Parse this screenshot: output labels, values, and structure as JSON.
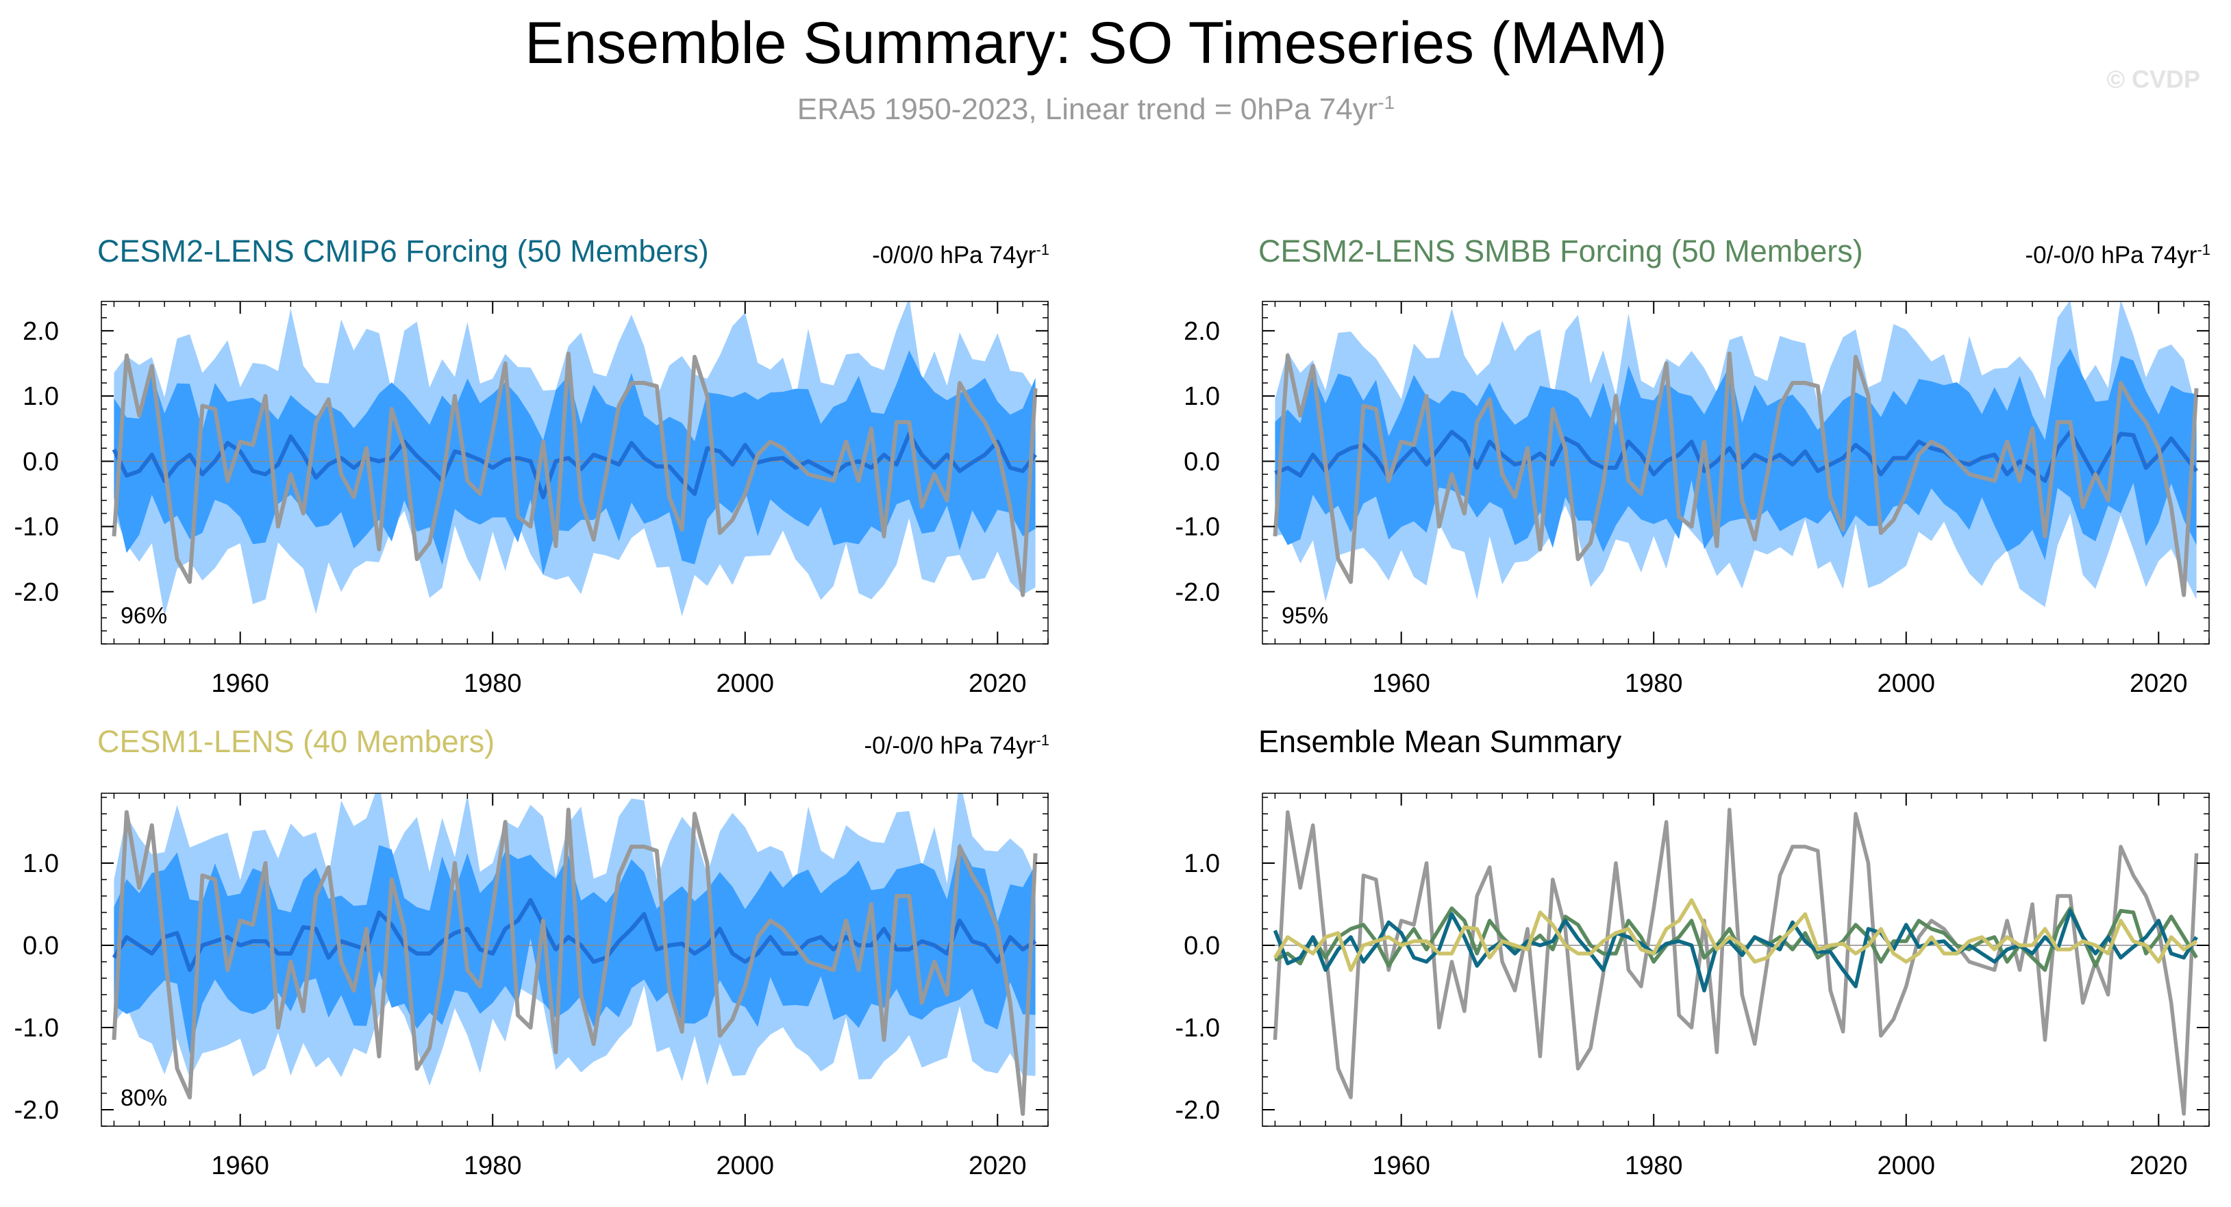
{
  "title": "Ensemble Summary: SO Timeseries (MAM)",
  "subtitle": {
    "main": "ERA5 1950-2023, Linear trend = 0hPa 74yr",
    "sup": "-1"
  },
  "watermark": "© CVDP",
  "colors": {
    "outer_band": "#9fcfff",
    "inner_band": "#3a9eff",
    "ens_mean": "#1f6fd6",
    "obs": "#999999",
    "cmip6": "#0e6a86",
    "smbb": "#5a8a5e",
    "lens1": "#cdc36a",
    "zero_line": "#888888"
  },
  "chart_data": [
    {
      "type": "area",
      "title": "CESM2-LENS CMIP6 Forcing (50 Members)",
      "title_color": "#0e6a86",
      "trend_text": "-0/0/0 hPa 74yr",
      "trend_sup": "-1",
      "pct_label": "96%",
      "x_start": 1950,
      "x_end": 2023,
      "xlim": [
        1949,
        2024
      ],
      "ylim": [
        -2.8,
        2.45
      ],
      "xticks": [
        1960,
        1980,
        2000,
        2020
      ],
      "xtick_labels": [
        "1960",
        "1980",
        "2000",
        "2020"
      ],
      "yticks": [
        2.0,
        1.0,
        0.0,
        -1.0,
        -2.0
      ],
      "ytick_labels": [
        "2.0",
        "1.0",
        "0.0",
        "-1.0",
        "-2.0"
      ],
      "series": [
        {
          "name": "ensemble mean",
          "key": "mean_base",
          "scale": 1.0
        },
        {
          "name": "ERA5",
          "key": "obs"
        }
      ],
      "band_outer": 1.55,
      "band_inner": 0.95
    },
    {
      "type": "area",
      "title": "CESM2-LENS SMBB Forcing (50 Members)",
      "title_color": "#5a8a5e",
      "trend_text": "-0/-0/0 hPa 74yr",
      "trend_sup": "-1",
      "pct_label": "95%",
      "x_start": 1950,
      "x_end": 2023,
      "xlim": [
        1949,
        2024
      ],
      "ylim": [
        -2.8,
        2.45
      ],
      "xticks": [
        1960,
        1980,
        2000,
        2020
      ],
      "xtick_labels": [
        "1960",
        "1980",
        "2000",
        "2020"
      ],
      "yticks": [
        2.0,
        1.0,
        0.0,
        -1.0,
        -2.0
      ],
      "ytick_labels": [
        "2.0",
        "1.0",
        "0.0",
        "-1.0",
        "-2.0"
      ],
      "series": [
        {
          "name": "ensemble mean",
          "key": "mean_smbb",
          "scale": 1.0
        },
        {
          "name": "ERA5",
          "key": "obs"
        }
      ],
      "band_outer": 1.5,
      "band_inner": 0.95
    },
    {
      "type": "area",
      "title": "CESM1-LENS (40 Members)",
      "title_color": "#cdc36a",
      "trend_text": "-0/-0/0 hPa 74yr",
      "trend_sup": "-1",
      "pct_label": "80%",
      "x_start": 1950,
      "x_end": 2023,
      "xlim": [
        1949,
        2024
      ],
      "ylim": [
        -2.2,
        1.85
      ],
      "xticks": [
        1960,
        1980,
        2000,
        2020
      ],
      "xtick_labels": [
        "1960",
        "1980",
        "2000",
        "2020"
      ],
      "yticks": [
        1.0,
        0.0,
        -1.0,
        -2.0
      ],
      "ytick_labels": [
        "1.0",
        "0.0",
        "-1.0",
        "-2.0"
      ],
      "series": [
        {
          "name": "ensemble mean",
          "key": "mean_lens1",
          "scale": 1.0
        },
        {
          "name": "ERA5",
          "key": "obs"
        }
      ],
      "band_outer": 1.25,
      "band_inner": 0.75
    },
    {
      "type": "line",
      "title": "Ensemble Mean Summary",
      "title_color": "#000000",
      "x_start": 1950,
      "x_end": 2023,
      "xlim": [
        1949,
        2024
      ],
      "ylim": [
        -2.2,
        1.85
      ],
      "xticks": [
        1960,
        1980,
        2000,
        2020
      ],
      "xtick_labels": [
        "1960",
        "1980",
        "2000",
        "2020"
      ],
      "yticks": [
        1.0,
        0.0,
        -1.0,
        -2.0
      ],
      "ytick_labels": [
        "1.0",
        "0.0",
        "-1.0",
        "-2.0"
      ],
      "series": [
        {
          "name": "ERA5",
          "key": "obs",
          "color": "#999999"
        },
        {
          "name": "CESM2-LENS SMBB",
          "key": "mean_smbb",
          "color": "#5a8a5e"
        },
        {
          "name": "CESM2-LENS CMIP6",
          "key": "mean_base",
          "color": "#0e6a86"
        },
        {
          "name": "CESM1-LENS",
          "key": "mean_lens1",
          "color": "#cdc36a"
        }
      ]
    }
  ],
  "series_values": {
    "obs": [
      -1.15,
      1.62,
      0.7,
      1.46,
      -0.05,
      -1.5,
      -1.85,
      0.85,
      0.8,
      -0.3,
      0.3,
      0.25,
      1.0,
      -1.0,
      -0.2,
      -0.8,
      0.6,
      0.95,
      -0.2,
      -0.55,
      0.2,
      -1.35,
      0.8,
      0.2,
      -1.5,
      -1.25,
      -0.35,
      1.0,
      -0.3,
      -0.5,
      0.45,
      1.5,
      -0.85,
      -1.0,
      0.3,
      -1.3,
      1.65,
      -0.6,
      -1.2,
      -0.2,
      0.85,
      1.2,
      1.2,
      1.15,
      -0.55,
      -1.05,
      1.6,
      1.0,
      -1.1,
      -0.9,
      -0.5,
      0.1,
      0.3,
      0.2,
      0.0,
      -0.2,
      -0.25,
      -0.3,
      0.3,
      -0.3,
      0.5,
      -1.15,
      0.6,
      0.6,
      -0.7,
      -0.2,
      -0.6,
      1.2,
      0.85,
      0.6,
      0.2,
      -0.7,
      -2.05,
      1.12
    ],
    "mean_base": [
      0.18,
      -0.22,
      -0.15,
      0.1,
      -0.3,
      -0.05,
      0.1,
      -0.2,
      0.0,
      0.28,
      0.15,
      -0.15,
      -0.2,
      -0.05,
      0.38,
      0.1,
      -0.25,
      -0.05,
      0.05,
      -0.1,
      0.05,
      0.0,
      0.05,
      0.3,
      0.08,
      -0.1,
      -0.3,
      0.15,
      0.1,
      0.02,
      -0.1,
      0.02,
      0.05,
      0.0,
      -0.55,
      0.0,
      0.05,
      -0.12,
      0.1,
      0.03,
      -0.05,
      0.28,
      0.05,
      -0.08,
      -0.08,
      -0.3,
      -0.5,
      0.2,
      0.15,
      -0.05,
      0.25,
      -0.02,
      0.03,
      0.05,
      -0.1,
      0.0,
      -0.1,
      -0.2,
      -0.05,
      0.0,
      -0.1,
      0.1,
      -0.05,
      0.42,
      0.1,
      -0.1,
      0.1,
      -0.15,
      -0.02,
      0.1,
      0.3,
      -0.1,
      -0.15,
      0.1
    ],
    "mean_smbb": [
      -0.18,
      -0.1,
      -0.22,
      0.1,
      -0.15,
      0.1,
      0.2,
      0.25,
      0.05,
      -0.25,
      0.0,
      0.2,
      -0.05,
      0.2,
      0.45,
      0.3,
      -0.1,
      0.3,
      0.1,
      -0.05,
      0.0,
      0.12,
      -0.05,
      0.35,
      0.25,
      0.0,
      -0.1,
      -0.1,
      0.3,
      0.1,
      -0.2,
      0.0,
      0.1,
      0.3,
      -0.15,
      0.0,
      0.2,
      -0.1,
      0.1,
      0.0,
      0.1,
      -0.05,
      0.15,
      -0.15,
      -0.05,
      0.05,
      0.25,
      0.1,
      -0.2,
      0.05,
      0.05,
      0.3,
      0.2,
      0.15,
      0.0,
      -0.05,
      0.05,
      0.1,
      -0.2,
      0.0,
      -0.15,
      -0.3,
      0.2,
      0.45,
      0.1,
      -0.25,
      0.1,
      0.42,
      0.4,
      -0.1,
      0.1,
      0.35,
      0.1,
      -0.15
    ],
    "mean_lens1": [
      -0.15,
      0.1,
      0.0,
      -0.1,
      0.1,
      0.15,
      -0.3,
      0.0,
      0.05,
      0.1,
      0.0,
      0.05,
      0.05,
      -0.1,
      -0.1,
      0.22,
      0.2,
      -0.15,
      0.05,
      0.0,
      -0.05,
      0.4,
      0.25,
      0.0,
      -0.1,
      -0.1,
      0.05,
      0.15,
      0.2,
      -0.05,
      -0.1,
      0.2,
      0.3,
      0.55,
      0.25,
      -0.05,
      0.1,
      0.0,
      -0.2,
      -0.15,
      0.05,
      0.2,
      0.38,
      -0.05,
      0.0,
      0.02,
      -0.1,
      0.0,
      0.2,
      -0.1,
      -0.2,
      -0.1,
      0.1,
      -0.1,
      -0.1,
      0.05,
      0.1,
      -0.05,
      0.1,
      0.0,
      0.0,
      0.2,
      -0.05,
      -0.05,
      0.05,
      0.0,
      -0.1,
      0.3,
      0.05,
      0.0,
      -0.2,
      0.1,
      -0.05,
      0.05
    ]
  }
}
